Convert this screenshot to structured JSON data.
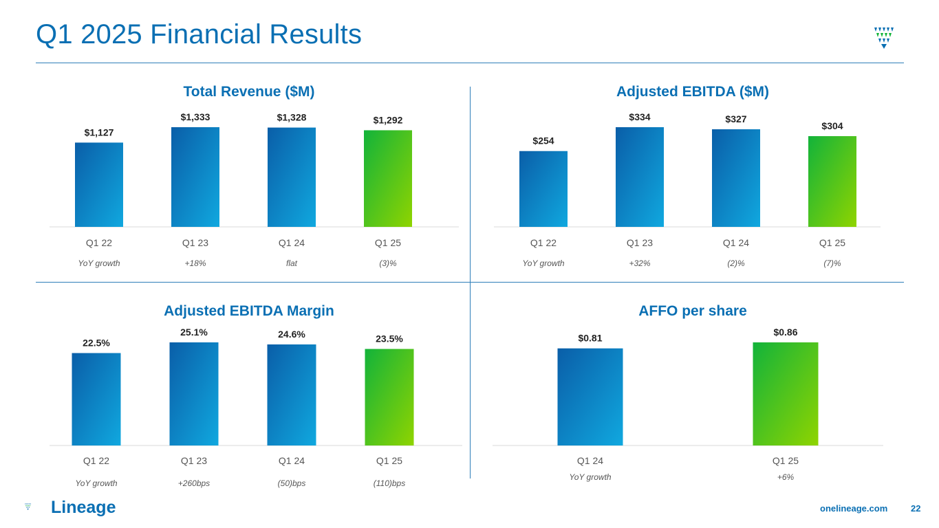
{
  "header": {
    "title": "Q1 2025 Financial Results"
  },
  "footer": {
    "logo_text": "Lineage",
    "url": "onelineage.com",
    "page_number": "22"
  },
  "colors": {
    "brand_blue": "#0a6fb3",
    "bar_blue_dark": "#0a5ea8",
    "bar_blue_light": "#10a8df",
    "bar_green_dark": "#12b33a",
    "bar_green_light": "#8fd400",
    "divider": "#2c7db8"
  },
  "chart_data": [
    {
      "type": "bar",
      "title": "Total Revenue ($M)",
      "categories": [
        "Q1 22",
        "Q1 23",
        "Q1 24",
        "Q1 25"
      ],
      "values": [
        1127,
        1333,
        1328,
        1292
      ],
      "value_labels": [
        "$1,127",
        "$1,333",
        "$1,328",
        "$1,292"
      ],
      "growth_labels": [
        "YoY growth",
        "+18%",
        "flat",
        "(3)%"
      ],
      "highlight_last": true
    },
    {
      "type": "bar",
      "title": "Adjusted EBITDA ($M)",
      "categories": [
        "Q1 22",
        "Q1 23",
        "Q1 24",
        "Q1 25"
      ],
      "values": [
        254,
        334,
        327,
        304
      ],
      "value_labels": [
        "$254",
        "$334",
        "$327",
        "$304"
      ],
      "growth_labels": [
        "YoY growth",
        "+32%",
        "(2)%",
        "(7)%"
      ],
      "highlight_last": true
    },
    {
      "type": "bar",
      "title": "Adjusted EBITDA Margin",
      "categories": [
        "Q1 22",
        "Q1 23",
        "Q1 24",
        "Q1 25"
      ],
      "values": [
        22.5,
        25.1,
        24.6,
        23.5
      ],
      "value_labels": [
        "22.5%",
        "25.1%",
        "24.6%",
        "23.5%"
      ],
      "growth_labels": [
        "YoY growth",
        "+260bps",
        "(50)bps",
        "(110)bps"
      ],
      "highlight_last": true
    },
    {
      "type": "bar",
      "title": "AFFO per share",
      "categories": [
        "Q1 24",
        "Q1 25"
      ],
      "values": [
        0.81,
        0.86
      ],
      "value_labels": [
        "$0.81",
        "$0.86"
      ],
      "growth_labels": [
        "YoY growth",
        "+6%"
      ],
      "highlight_last": true
    }
  ]
}
